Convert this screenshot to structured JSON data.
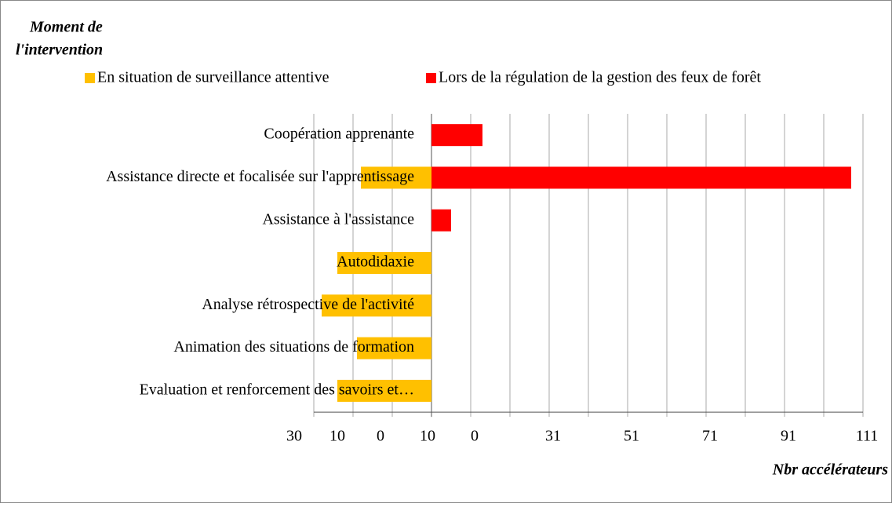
{
  "chart_data": {
    "type": "diverging-bar",
    "legend_title": [
      "Moment de",
      "l'intervention"
    ],
    "x_label": "Nbr accélérateurs",
    "categories": [
      "Coopération apprenante",
      "Assistance directe et focalisée sur l'apprentissage",
      "Assistance à l'assistance",
      "Autodidaxie",
      "Analyse rétrospective de l'activité",
      "Animation des situations de formation",
      "Evaluation et renforcement des savoirs et…"
    ],
    "series": [
      {
        "name": "En situation de surveillance attentive",
        "color": "#ffc000",
        "values": [
          null,
          -18,
          null,
          -24,
          -28,
          -19,
          -24
        ]
      },
      {
        "name": "Lors de la régulation de la gestion des feux de forêt",
        "color": "#ff0000",
        "values": [
          13,
          107,
          5,
          null,
          null,
          null,
          null
        ]
      }
    ],
    "xlim": [
      -30,
      110
    ],
    "grid_values": [
      -30,
      -20,
      -10,
      0,
      10,
      20,
      30,
      40,
      50,
      60,
      70,
      80,
      90,
      100,
      110
    ],
    "xticks": [
      {
        "value": -35,
        "label": "30"
      },
      {
        "value": -24,
        "label": "10"
      },
      {
        "value": -13,
        "label": "0"
      },
      {
        "value": -1,
        "label": "10"
      },
      {
        "value": 11,
        "label": "0"
      },
      31,
      51,
      71,
      91,
      111
    ],
    "grid": true,
    "legend": "top"
  }
}
